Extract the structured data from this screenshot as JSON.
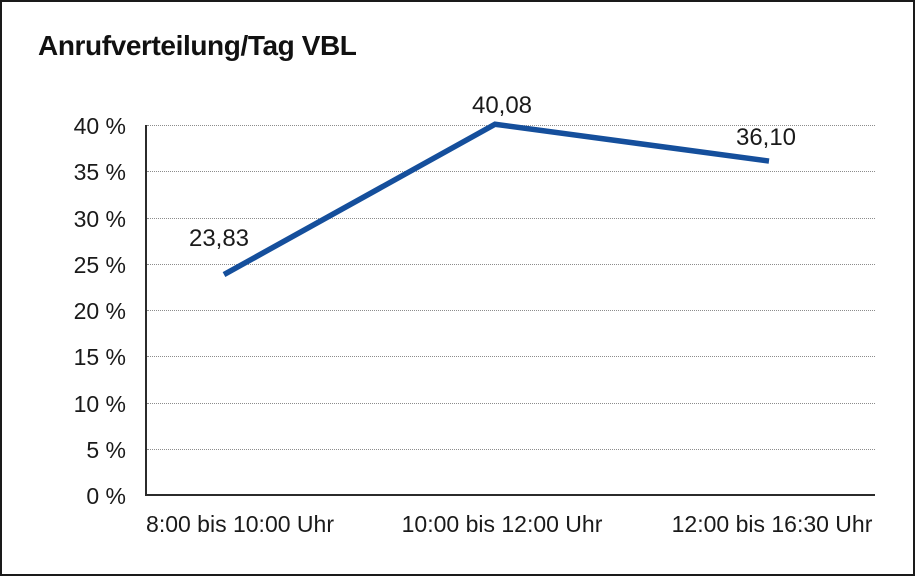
{
  "chart_data": {
    "type": "line",
    "title": "Anrufverteilung/Tag VBL",
    "categories": [
      "8:00 bis 10:00 Uhr",
      "10:00 bis 12:00 Uhr",
      "12:00 bis 16:30 Uhr"
    ],
    "values": [
      23.83,
      40.08,
      36.1
    ],
    "value_labels": [
      "23,83",
      "40,08",
      "36,10"
    ],
    "xlabel": "",
    "ylabel": "",
    "ylim": [
      0,
      40
    ],
    "ytick_step": 5,
    "ytick_labels": [
      "0 %",
      "5 %",
      "10 %",
      "15 %",
      "20 %",
      "25 %",
      "30 %",
      "35 %",
      "40 %"
    ],
    "grid": "horizontal-dotted",
    "legend": "none",
    "line_color": "#154F9C"
  },
  "colors": {
    "line": "#154F9C",
    "gridline": "#8c8c8c",
    "axis": "#2b2b2b",
    "frame_border": "#1a1a1a",
    "text": "#1a1a1a",
    "background": "#ffffff"
  }
}
